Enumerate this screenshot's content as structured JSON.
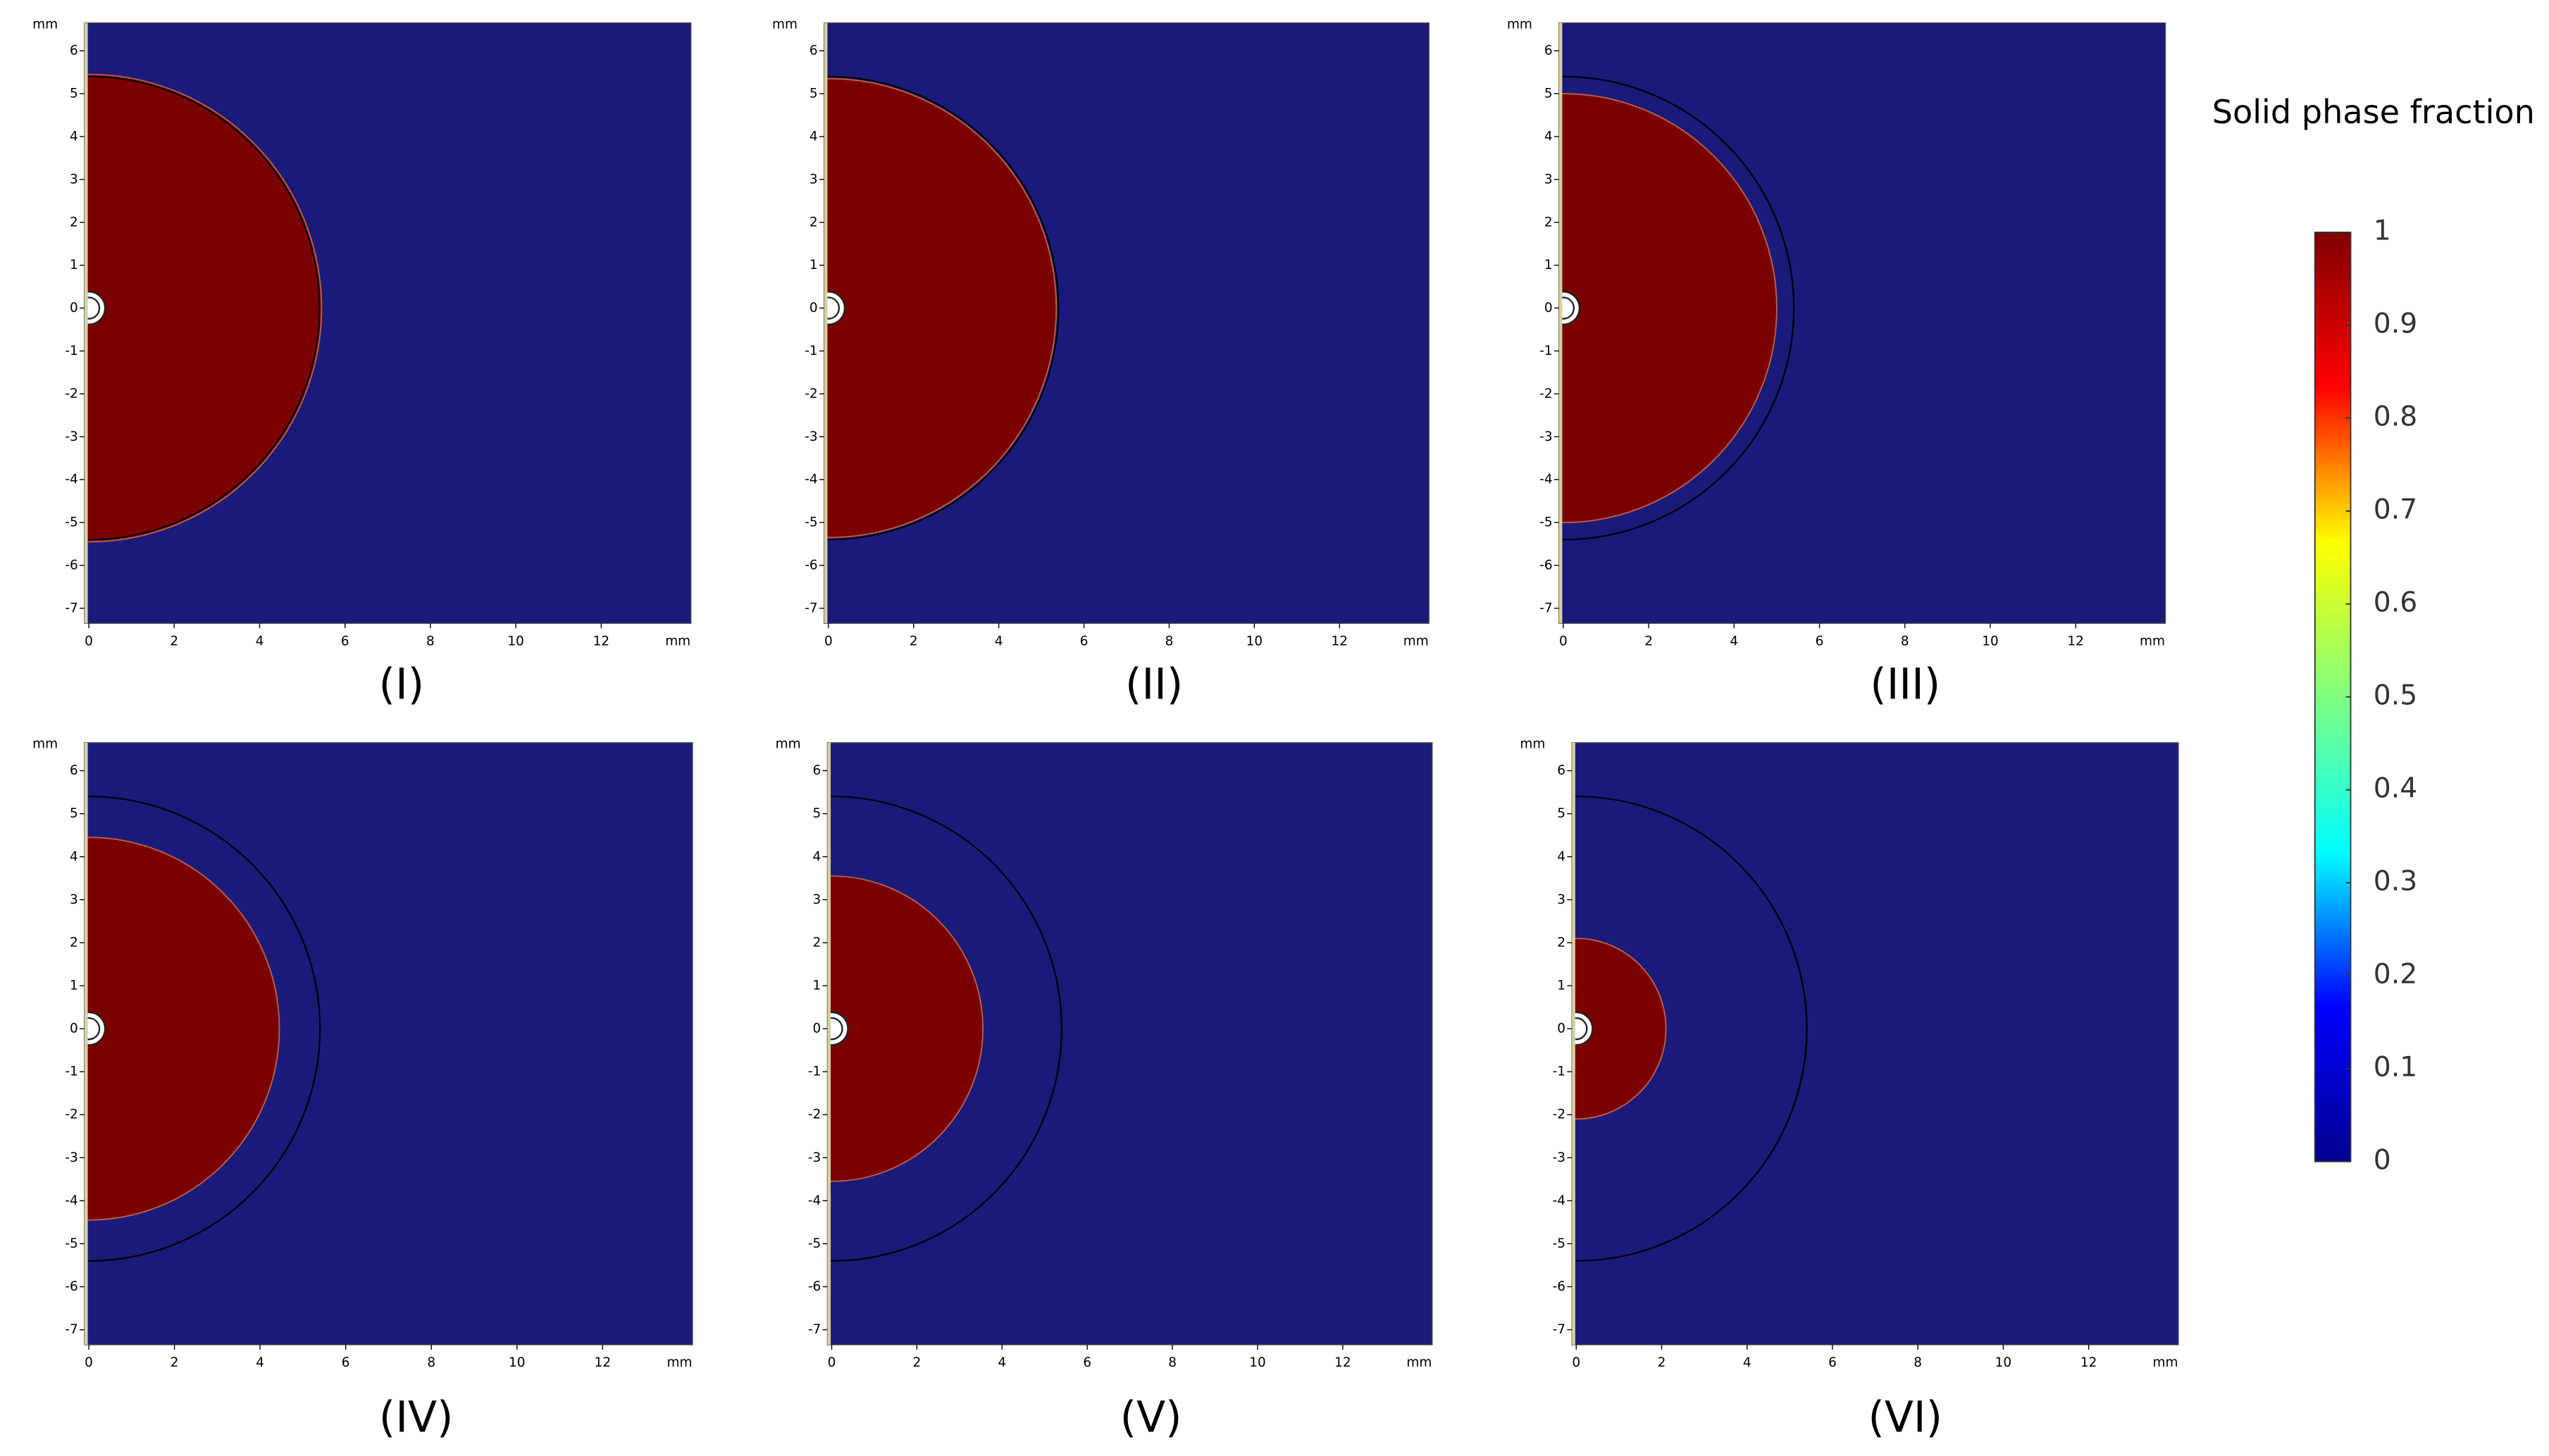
{
  "chart_data": [
    {
      "type": "phase-field",
      "title": "(I)",
      "x_unit": "mm",
      "y_unit": "mm",
      "xlim": [
        -0.1,
        14.1
      ],
      "ylim": [
        -7.35,
        6.65
      ],
      "xticks": [
        0,
        2,
        4,
        6,
        8,
        10,
        12
      ],
      "yticks": [
        -7,
        -6,
        -5,
        -4,
        -3,
        -2,
        -1,
        0,
        1,
        2,
        3,
        4,
        5,
        6
      ],
      "solid_radius": 5.45,
      "initial_radius": 5.4,
      "solid_color": "#7a0000",
      "liquid_color": "#1a1a7a"
    },
    {
      "type": "phase-field",
      "title": "(II)",
      "x_unit": "mm",
      "y_unit": "mm",
      "xlim": [
        -0.1,
        14.1
      ],
      "ylim": [
        -7.35,
        6.65
      ],
      "xticks": [
        0,
        2,
        4,
        6,
        8,
        10,
        12
      ],
      "yticks": [
        -7,
        -6,
        -5,
        -4,
        -3,
        -2,
        -1,
        0,
        1,
        2,
        3,
        4,
        5,
        6
      ],
      "solid_radius": 5.35,
      "initial_radius": 5.4,
      "solid_color": "#7a0000",
      "liquid_color": "#1a1a7a"
    },
    {
      "type": "phase-field",
      "title": "(III)",
      "x_unit": "mm",
      "y_unit": "mm",
      "xlim": [
        -0.1,
        14.1
      ],
      "ylim": [
        -7.35,
        6.65
      ],
      "xticks": [
        0,
        2,
        4,
        6,
        8,
        10,
        12
      ],
      "yticks": [
        -7,
        -6,
        -5,
        -4,
        -3,
        -2,
        -1,
        0,
        1,
        2,
        3,
        4,
        5,
        6
      ],
      "solid_radius": 5.0,
      "initial_radius": 5.4,
      "solid_color": "#7a0000",
      "liquid_color": "#1a1a7a"
    },
    {
      "type": "phase-field",
      "title": "(IV)",
      "x_unit": "mm",
      "y_unit": "mm",
      "xlim": [
        -0.1,
        14.1
      ],
      "ylim": [
        -7.35,
        6.65
      ],
      "xticks": [
        0,
        2,
        4,
        6,
        8,
        10,
        12
      ],
      "yticks": [
        -7,
        -6,
        -5,
        -4,
        -3,
        -2,
        -1,
        0,
        1,
        2,
        3,
        4,
        5,
        6
      ],
      "solid_radius": 4.45,
      "initial_radius": 5.4,
      "solid_color": "#7a0000",
      "liquid_color": "#1a1a7a"
    },
    {
      "type": "phase-field",
      "title": "(V)",
      "x_unit": "mm",
      "y_unit": "mm",
      "xlim": [
        -0.1,
        14.1
      ],
      "ylim": [
        -7.35,
        6.65
      ],
      "xticks": [
        0,
        2,
        4,
        6,
        8,
        10,
        12
      ],
      "yticks": [
        -7,
        -6,
        -5,
        -4,
        -3,
        -2,
        -1,
        0,
        1,
        2,
        3,
        4,
        5,
        6
      ],
      "solid_radius": 3.55,
      "initial_radius": 5.4,
      "solid_color": "#7a0000",
      "liquid_color": "#1a1a7a"
    },
    {
      "type": "phase-field",
      "title": "(VI)",
      "x_unit": "mm",
      "y_unit": "mm",
      "xlim": [
        -0.1,
        14.1
      ],
      "ylim": [
        -7.35,
        6.65
      ],
      "xticks": [
        0,
        2,
        4,
        6,
        8,
        10,
        12
      ],
      "yticks": [
        -7,
        -6,
        -5,
        -4,
        -3,
        -2,
        -1,
        0,
        1,
        2,
        3,
        4,
        5,
        6
      ],
      "solid_radius": 2.1,
      "initial_radius": 5.4,
      "solid_color": "#7a0000",
      "liquid_color": "#1a1a7a"
    }
  ],
  "colorbar": {
    "title": "Solid phase fraction",
    "lim": [
      0,
      1
    ],
    "ticks": [
      0,
      0.1,
      0.2,
      0.3,
      0.4,
      0.5,
      0.6,
      0.7,
      0.8,
      0.9,
      1
    ],
    "colors": [
      "#00008f",
      "#0000ff",
      "#00ffff",
      "#80ff80",
      "#ffff00",
      "#ff0000",
      "#800000"
    ]
  }
}
